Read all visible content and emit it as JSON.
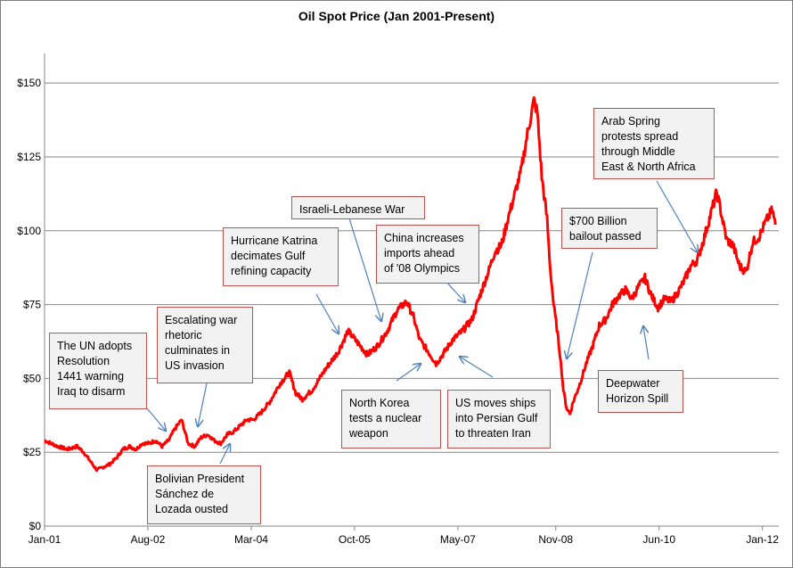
{
  "chart_data": {
    "type": "line",
    "title": "Oil Spot Price (Jan 2001-Present)",
    "xlabel": "",
    "ylabel": "",
    "ylim": [
      0,
      160
    ],
    "y_ticks": [
      "$0",
      "$25",
      "$50",
      "$75",
      "$100",
      "$125",
      "$150"
    ],
    "y_tick_values": [
      0,
      25,
      50,
      75,
      100,
      125,
      150
    ],
    "x_ticks": [
      "Jan-01",
      "Aug-02",
      "Mar-04",
      "Oct-05",
      "May-07",
      "Nov-08",
      "Jun-10",
      "Jan-12"
    ],
    "x_tick_values": [
      2001.0,
      2002.583,
      2004.167,
      2005.75,
      2007.333,
      2008.833,
      2010.417,
      2012.0
    ],
    "grid": true,
    "line_color": "#ff0000",
    "series": [
      {
        "x": [
          2001.0,
          2001.1,
          2001.2,
          2001.35,
          2001.5,
          2001.6,
          2001.7,
          2001.8,
          2001.9,
          2002.0,
          2002.1,
          2002.2,
          2002.3,
          2002.4,
          2002.5,
          2002.6,
          2002.7,
          2002.8,
          2002.9,
          2003.0,
          2003.1,
          2003.2,
          2003.3,
          2003.4,
          2003.5,
          2003.6,
          2003.7,
          2003.8,
          2003.9,
          2004.0,
          2004.1,
          2004.2,
          2004.3,
          2004.45,
          2004.6,
          2004.75,
          2004.85,
          2004.95,
          2005.1,
          2005.3,
          2005.5,
          2005.65,
          2005.8,
          2005.95,
          2006.1,
          2006.25,
          2006.4,
          2006.55,
          2006.65,
          2006.75,
          2006.85,
          2007.0,
          2007.1,
          2007.25,
          2007.4,
          2007.55,
          2007.7,
          2007.8,
          2007.9,
          2008.0,
          2008.1,
          2008.2,
          2008.3,
          2008.4,
          2008.5,
          2008.55,
          2008.62,
          2008.7,
          2008.75,
          2008.8,
          2008.85,
          2008.9,
          2008.95,
          2009.0,
          2009.05,
          2009.1,
          2009.2,
          2009.3,
          2009.4,
          2009.5,
          2009.6,
          2009.7,
          2009.8,
          2009.9,
          2010.0,
          2010.1,
          2010.2,
          2010.3,
          2010.4,
          2010.5,
          2010.6,
          2010.7,
          2010.8,
          2010.9,
          2011.0,
          2011.1,
          2011.2,
          2011.3,
          2011.35,
          2011.45,
          2011.55,
          2011.65,
          2011.75,
          2011.85,
          2011.95,
          2012.05,
          2012.15,
          2012.2
        ],
        "y": [
          29,
          28,
          27,
          26,
          27,
          25,
          22,
          19,
          20,
          21,
          23,
          26,
          27,
          26,
          28,
          28,
          29,
          27,
          29,
          33,
          36,
          28,
          27,
          30,
          31,
          29,
          28,
          31,
          32,
          34,
          36,
          36,
          38,
          42,
          48,
          52,
          45,
          43,
          46,
          53,
          59,
          66,
          62,
          58,
          61,
          66,
          73,
          76,
          71,
          63,
          60,
          55,
          58,
          63,
          66,
          70,
          80,
          86,
          93,
          95,
          104,
          112,
          120,
          133,
          144,
          140,
          118,
          104,
          87,
          75,
          67,
          58,
          46,
          40,
          38,
          42,
          48,
          55,
          61,
          68,
          70,
          75,
          78,
          80,
          77,
          81,
          84,
          78,
          74,
          77,
          76,
          79,
          83,
          88,
          90,
          97,
          105,
          113,
          108,
          97,
          95,
          88,
          86,
          96,
          98,
          103,
          107,
          102
        ]
      }
    ],
    "annotations": [
      {
        "id": "un-1441",
        "lines": [
          "The UN adopts",
          "Resolution",
          "1441 warning",
          "Iraq to disarm"
        ]
      },
      {
        "id": "iraq-war",
        "lines": [
          "Escalating war",
          "rhetoric",
          "culminates in",
          "US invasion"
        ]
      },
      {
        "id": "bolivia",
        "lines": [
          "Bolivian President",
          "Sánchez de",
          "Lozada ousted"
        ]
      },
      {
        "id": "katrina",
        "lines": [
          "Hurricane Katrina",
          "decimates Gulf",
          "refining capacity"
        ]
      },
      {
        "id": "lebanon",
        "lines": [
          "Israeli-Lebanese War"
        ]
      },
      {
        "id": "north-korea",
        "lines": [
          "North Korea",
          "tests a nuclear",
          "weapon"
        ]
      },
      {
        "id": "china",
        "lines": [
          "China increases",
          "imports ahead",
          "of '08 Olympics"
        ]
      },
      {
        "id": "persian-gulf",
        "lines": [
          "US moves ships",
          "into Persian Gulf",
          "to threaten Iran"
        ]
      },
      {
        "id": "bailout",
        "lines": [
          "$700 Billion",
          "bailout passed"
        ]
      },
      {
        "id": "deepwater",
        "lines": [
          "Deepwater",
          "Horizon Spill"
        ]
      },
      {
        "id": "arab-spring",
        "lines": [
          "Arab Spring",
          "protests spread",
          "through Middle",
          "East & North Africa"
        ]
      }
    ]
  }
}
